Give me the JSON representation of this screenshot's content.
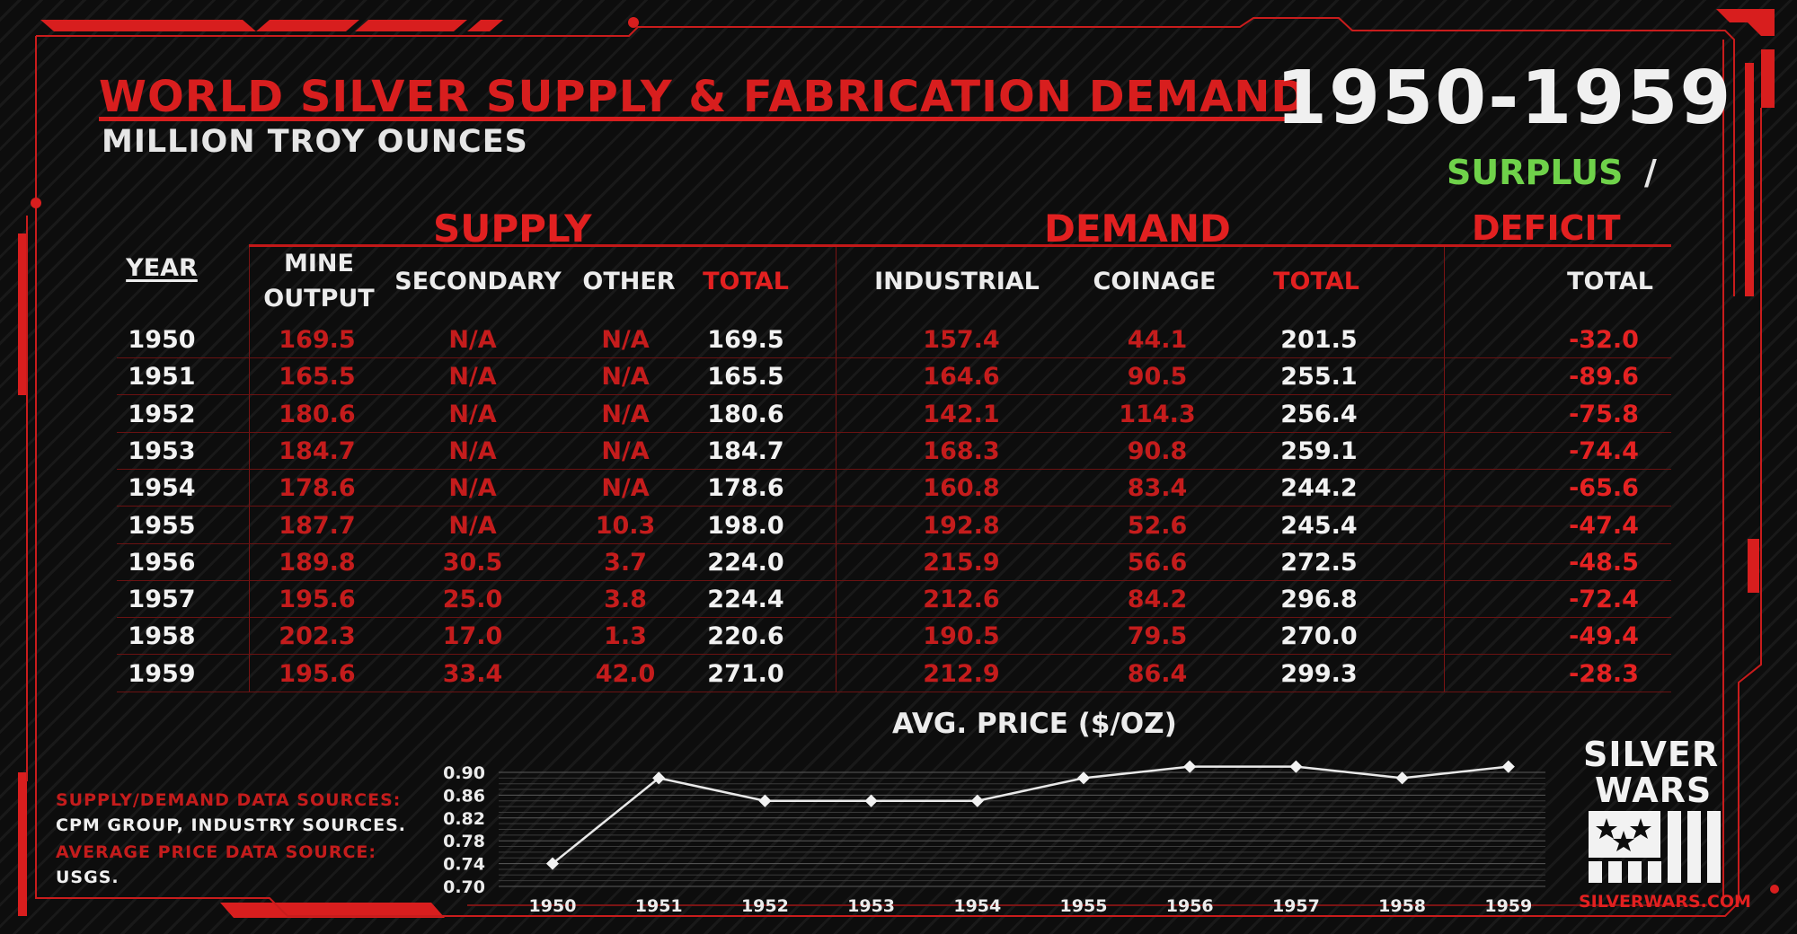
{
  "header": {
    "title": "WORLD SILVER SUPPLY & FABRICATION DEMAND",
    "subtitle": "MILLION TROY OUNCES",
    "years": "1950-1959",
    "surplus": "SURPLUS",
    "slash": "/",
    "deficit": "DEFICIT"
  },
  "groups": {
    "supply": "SUPPLY",
    "demand": "DEMAND"
  },
  "columns": {
    "year": "YEAR",
    "mine1": "MINE",
    "mine2": "OUTPUT",
    "secondary": "SECONDARY",
    "other": "OTHER",
    "supply_total": "TOTAL",
    "industrial": "INDUSTRIAL",
    "coinage": "COINAGE",
    "demand_total": "TOTAL",
    "balance_total": "TOTAL"
  },
  "rows": [
    {
      "year": "1950",
      "mine": "169.5",
      "secondary": "N/A",
      "other": "N/A",
      "supply_total": "169.5",
      "industrial": "157.4",
      "coinage": "44.1",
      "demand_total": "201.5",
      "balance": "-32.0"
    },
    {
      "year": "1951",
      "mine": "165.5",
      "secondary": "N/A",
      "other": "N/A",
      "supply_total": "165.5",
      "industrial": "164.6",
      "coinage": "90.5",
      "demand_total": "255.1",
      "balance": "-89.6"
    },
    {
      "year": "1952",
      "mine": "180.6",
      "secondary": "N/A",
      "other": "N/A",
      "supply_total": "180.6",
      "industrial": "142.1",
      "coinage": "114.3",
      "demand_total": "256.4",
      "balance": "-75.8"
    },
    {
      "year": "1953",
      "mine": "184.7",
      "secondary": "N/A",
      "other": "N/A",
      "supply_total": "184.7",
      "industrial": "168.3",
      "coinage": "90.8",
      "demand_total": "259.1",
      "balance": "-74.4"
    },
    {
      "year": "1954",
      "mine": "178.6",
      "secondary": "N/A",
      "other": "N/A",
      "supply_total": "178.6",
      "industrial": "160.8",
      "coinage": "83.4",
      "demand_total": "244.2",
      "balance": "-65.6"
    },
    {
      "year": "1955",
      "mine": "187.7",
      "secondary": "N/A",
      "other": "10.3",
      "supply_total": "198.0",
      "industrial": "192.8",
      "coinage": "52.6",
      "demand_total": "245.4",
      "balance": "-47.4"
    },
    {
      "year": "1956",
      "mine": "189.8",
      "secondary": "30.5",
      "other": "3.7",
      "supply_total": "224.0",
      "industrial": "215.9",
      "coinage": "56.6",
      "demand_total": "272.5",
      "balance": "-48.5"
    },
    {
      "year": "1957",
      "mine": "195.6",
      "secondary": "25.0",
      "other": "3.8",
      "supply_total": "224.4",
      "industrial": "212.6",
      "coinage": "84.2",
      "demand_total": "296.8",
      "balance": "-72.4"
    },
    {
      "year": "1958",
      "mine": "202.3",
      "secondary": "17.0",
      "other": "1.3",
      "supply_total": "220.6",
      "industrial": "190.5",
      "coinage": "79.5",
      "demand_total": "270.0",
      "balance": "-49.4"
    },
    {
      "year": "1959",
      "mine": "195.6",
      "secondary": "33.4",
      "other": "42.0",
      "supply_total": "271.0",
      "industrial": "212.9",
      "coinage": "86.4",
      "demand_total": "299.3",
      "balance": "-28.3"
    }
  ],
  "chart_data": {
    "type": "line",
    "title": "AVG. PRICE ($/OZ)",
    "x": [
      "1950",
      "1951",
      "1952",
      "1953",
      "1954",
      "1955",
      "1956",
      "1957",
      "1958",
      "1959"
    ],
    "values": [
      0.74,
      0.89,
      0.85,
      0.85,
      0.85,
      0.89,
      0.91,
      0.91,
      0.89,
      0.91
    ],
    "yticks": [
      "0.90",
      "0.86",
      "0.82",
      "0.78",
      "0.74",
      "0.70"
    ],
    "ylim": [
      0.7,
      0.9
    ],
    "grid": true
  },
  "sources": {
    "sd_label": "SUPPLY/DEMAND DATA SOURCES:",
    "sd_value": "CPM GROUP, INDUSTRY SOURCES.",
    "price_label": "AVERAGE PRICE DATA SOURCE:",
    "price_value": "USGS."
  },
  "logo": {
    "line1": "SILVER",
    "line2": "WARS",
    "site": "SILVERWARS.COM"
  },
  "colors": {
    "red": "#e22020",
    "dark_red": "#c41c1c",
    "green": "#6fd24a",
    "white": "#f2f2f2",
    "background": "#0d0d0d"
  }
}
